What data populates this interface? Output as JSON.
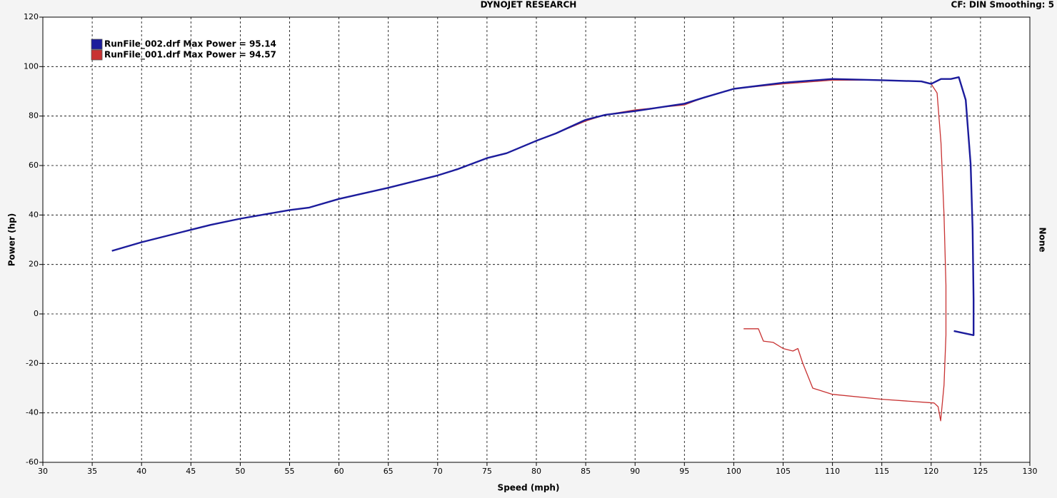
{
  "chart_data": {
    "type": "line",
    "title": "DYNOJET RESEARCH",
    "subtitle": "CF: DIN  Smoothing: 5",
    "x_label": "Speed (mph)",
    "y_label": "Power (hp)",
    "y2_label": "None",
    "xlim": [
      30,
      130
    ],
    "ylim": [
      -60,
      120
    ],
    "xticks": [
      30,
      35,
      40,
      45,
      50,
      55,
      60,
      65,
      70,
      75,
      80,
      85,
      90,
      95,
      100,
      105,
      110,
      115,
      120,
      125,
      130
    ],
    "yticks": [
      -60,
      -40,
      -20,
      0,
      20,
      40,
      60,
      80,
      100,
      120
    ],
    "grid": true,
    "legend": "top-left",
    "series": [
      {
        "name": "RunFile_002.drf Max Power = 95.14",
        "color": "#1c1c9c",
        "x": [
          37,
          40,
          45,
          47,
          50,
          55,
          57,
          60,
          65,
          70,
          72,
          75,
          77,
          80,
          82,
          85,
          87,
          90,
          95,
          97,
          100,
          105,
          110,
          115,
          119,
          120,
          121,
          122,
          122.8,
          123.5,
          124,
          124.2,
          124.3,
          124.3,
          122.3
        ],
        "values": [
          25.5,
          29,
          34,
          36,
          38.5,
          42,
          43,
          46.5,
          51,
          56,
          58.5,
          63,
          65,
          70,
          73,
          78.5,
          80.5,
          82,
          85,
          87.5,
          91,
          93.5,
          95,
          94.5,
          94,
          93,
          95,
          95,
          95.7,
          86.5,
          60.5,
          34.6,
          5.8,
          -8.6,
          -6.9
        ]
      },
      {
        "name": "RunFile_001.drf Max Power = 94.57",
        "color": "#c83232",
        "x": [
          37,
          40,
          45,
          47,
          50,
          55,
          57,
          60,
          65,
          70,
          72,
          75,
          77,
          80,
          82,
          85,
          87,
          90,
          95,
          97,
          100,
          105,
          110,
          115,
          119,
          120,
          120.6,
          121,
          121.3,
          121.5,
          121.5,
          121.3,
          120.96,
          120.7,
          120.3,
          115,
          110,
          108,
          107,
          106.5,
          106,
          105,
          104,
          103,
          102.5,
          101
        ],
        "values": [
          25.5,
          29,
          34,
          36,
          38.5,
          42,
          43,
          46.5,
          51,
          56,
          58.5,
          63,
          65,
          70,
          73,
          78,
          80.5,
          82.5,
          84.5,
          87.5,
          91,
          93,
          94.5,
          94.5,
          94,
          93,
          89.3,
          69,
          40,
          11.5,
          -8.6,
          -28.8,
          -43.2,
          -37.5,
          -36,
          -34.5,
          -32.5,
          -30,
          -20,
          -14,
          -15,
          -14,
          -11.5,
          -11,
          -6,
          -6
        ]
      }
    ]
  }
}
